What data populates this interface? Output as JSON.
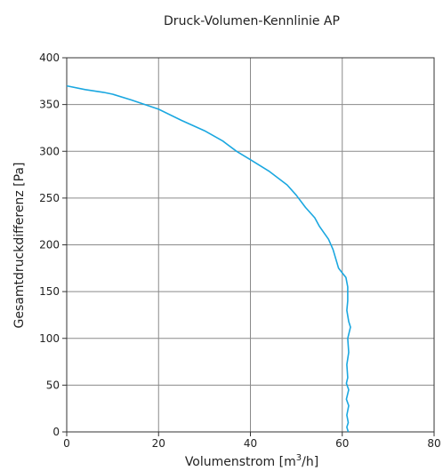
{
  "chart_data": {
    "type": "line",
    "title": "Druck-Volumen-Kennlinie AP",
    "xlabel_text": "Volumenstrom [m",
    "xlabel_sup": "3",
    "xlabel_tail": "/h]",
    "ylabel": "Gesamtdruckdifferenz [Pa]",
    "xlim": [
      0,
      80
    ],
    "ylim": [
      0,
      400
    ],
    "xticks": [
      0,
      20,
      40,
      60,
      80
    ],
    "yticks": [
      0,
      50,
      100,
      150,
      200,
      250,
      300,
      350,
      400
    ],
    "xtick_labels": [
      "0",
      "20",
      "40",
      "60",
      "80"
    ],
    "ytick_labels": [
      "0",
      "50",
      "100",
      "150",
      "200",
      "250",
      "300",
      "350",
      "400"
    ],
    "grid": true,
    "line_color": "#1aa7e0",
    "grid_color": "#8a8a8a",
    "series": [
      {
        "x": [
          0,
          4,
          8,
          10,
          14,
          20,
          25,
          30,
          34,
          37,
          40,
          44,
          48,
          50,
          52,
          54,
          55,
          56,
          57,
          58,
          58.6,
          59.2,
          60,
          60.8,
          61.2,
          61.2,
          61.0,
          61.4,
          61.8,
          61.2,
          61.4,
          61.0,
          61.2,
          60.9,
          61.4,
          60.9,
          61.4,
          61.0,
          61.3,
          61.0,
          61.3
        ],
        "y": [
          370,
          366,
          363,
          361,
          355,
          345,
          333,
          322,
          311,
          300,
          291,
          279,
          264,
          253,
          240,
          229,
          220,
          213,
          206,
          195,
          185,
          175,
          170,
          165,
          155,
          140,
          130,
          118,
          112,
          100,
          85,
          72,
          58,
          52,
          45,
          35,
          28,
          18,
          10,
          5,
          0
        ]
      }
    ]
  }
}
